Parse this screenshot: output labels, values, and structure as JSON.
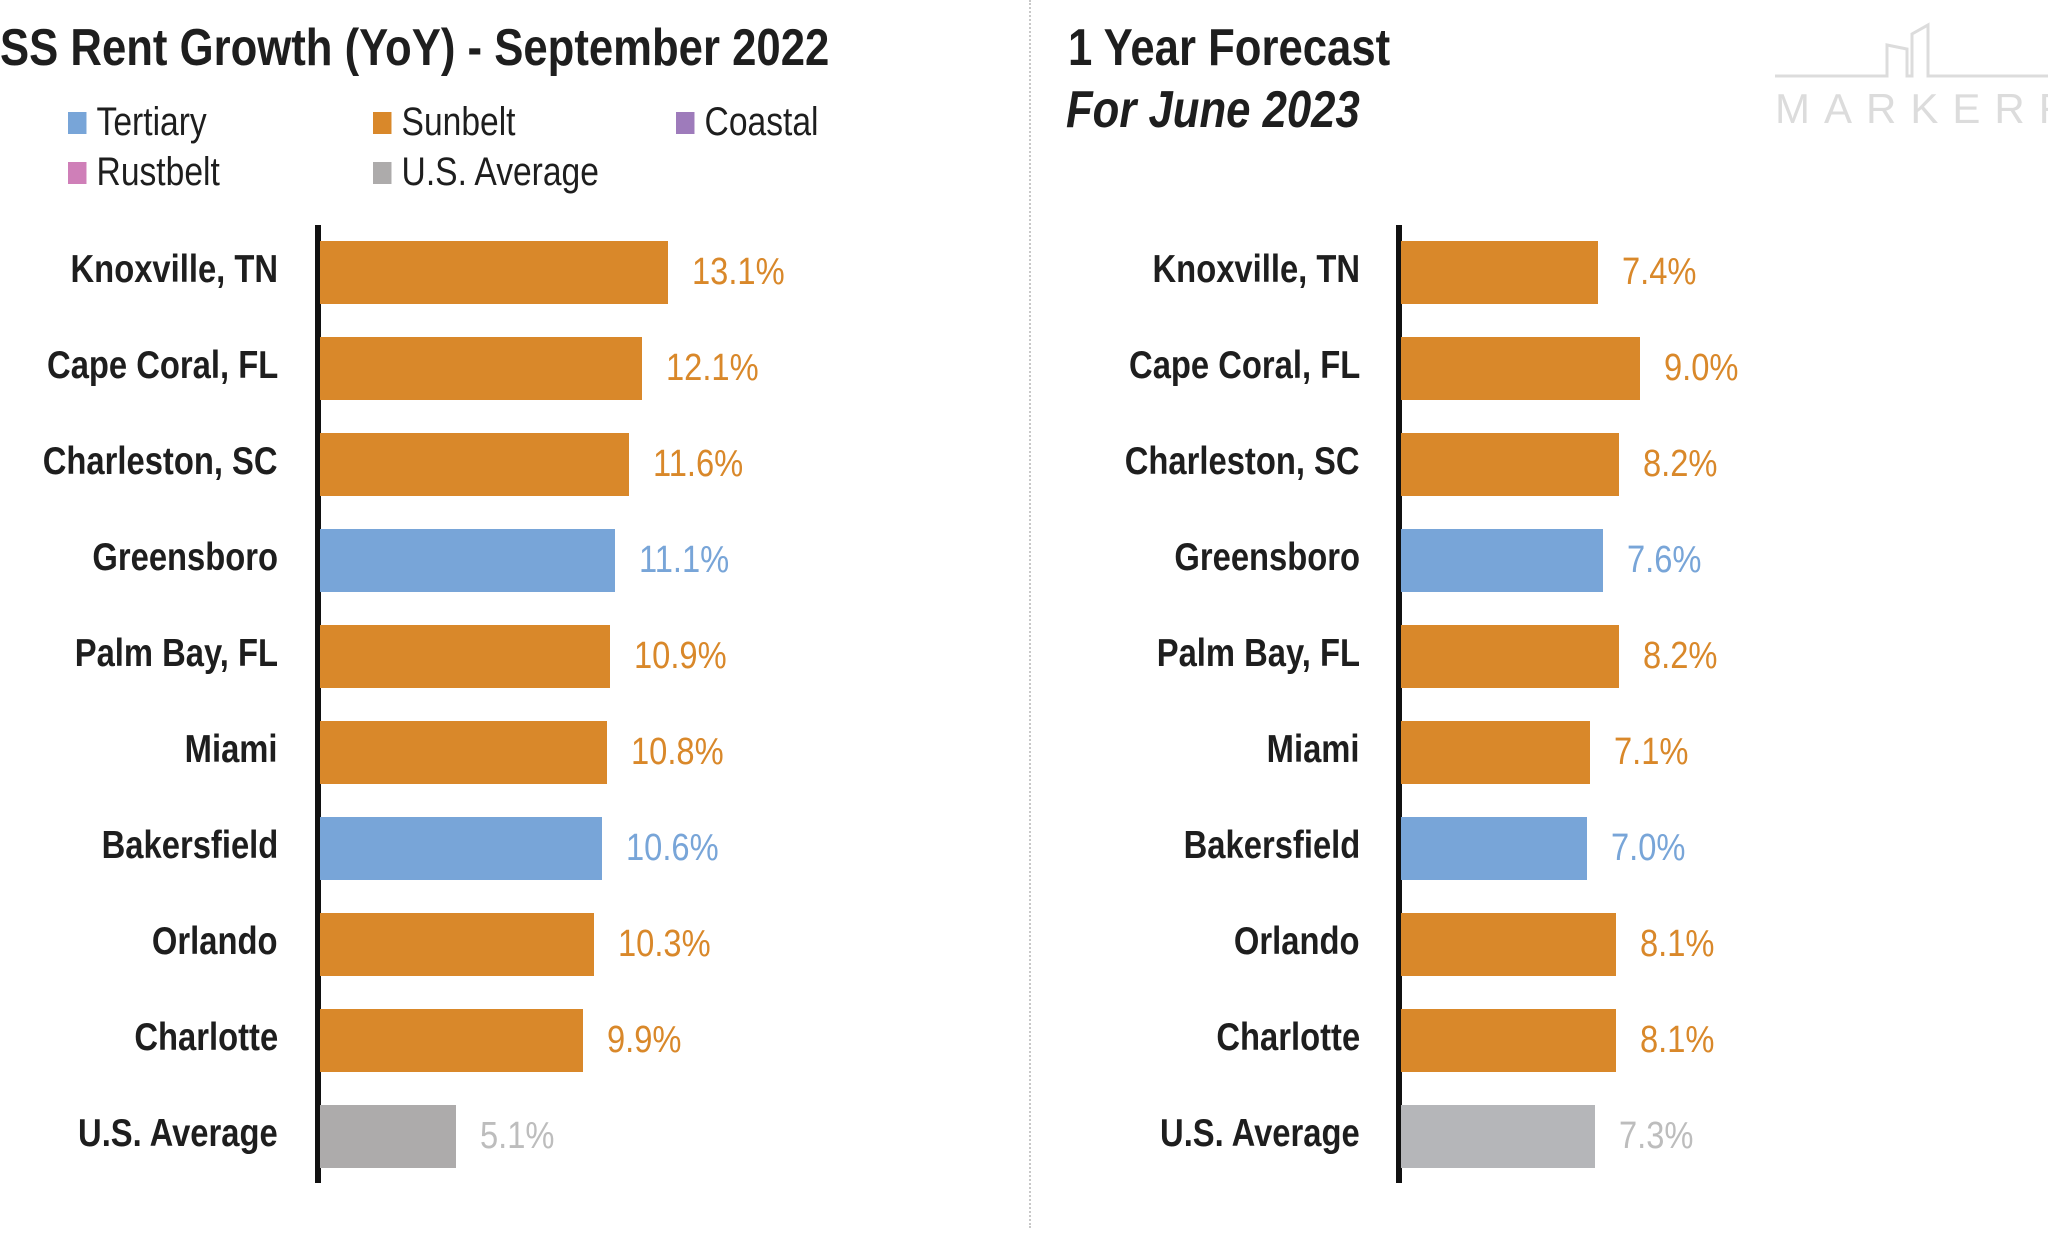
{
  "colors": {
    "Tertiary": "#78A5D8",
    "Sunbelt": "#D9882A",
    "Coastal": "#9E7BBB",
    "Rustbelt": "#CF7FB8",
    "U.S. Average": "#ADABAB"
  },
  "legend": [
    "Tertiary",
    "Sunbelt",
    "Coastal",
    "Rustbelt",
    "U.S. Average"
  ],
  "logo": {
    "text": "MARKERR"
  },
  "chart_data": [
    {
      "type": "bar",
      "orientation": "horizontal",
      "title": "SS Rent Growth (YoY) - September 2022",
      "categories": [
        "Knoxville, TN",
        "Cape Coral, FL",
        "Charleston, SC",
        "Greensboro",
        "Palm Bay, FL",
        "Miami",
        "Bakersfield",
        "Orlando",
        "Charlotte",
        "U.S. Average"
      ],
      "groups": [
        "Sunbelt",
        "Sunbelt",
        "Sunbelt",
        "Tertiary",
        "Sunbelt",
        "Sunbelt",
        "Tertiary",
        "Sunbelt",
        "Sunbelt",
        "U.S. Average"
      ],
      "values": [
        13.1,
        12.1,
        11.6,
        11.1,
        10.9,
        10.8,
        10.6,
        10.3,
        9.9,
        5.1
      ],
      "labels": [
        "13.1%",
        "12.1%",
        "11.6%",
        "11.1%",
        "10.9%",
        "10.8%",
        "10.6%",
        "10.3%",
        "9.9%",
        "5.1%"
      ],
      "legend_position": "top"
    },
    {
      "type": "bar",
      "orientation": "horizontal",
      "title": "1 Year Forecast",
      "subtitle": "For June 2023",
      "categories": [
        "Knoxville, TN",
        "Cape Coral, FL",
        "Charleston, SC",
        "Greensboro",
        "Palm Bay, FL",
        "Miami",
        "Bakersfield",
        "Orlando",
        "Charlotte",
        "U.S. Average"
      ],
      "groups": [
        "Sunbelt",
        "Sunbelt",
        "Sunbelt",
        "Tertiary",
        "Sunbelt",
        "Sunbelt",
        "Tertiary",
        "Sunbelt",
        "Sunbelt",
        "U.S. Average"
      ],
      "values": [
        7.4,
        9.0,
        8.2,
        7.6,
        8.2,
        7.1,
        7.0,
        8.1,
        8.1,
        7.3
      ],
      "labels": [
        "7.4%",
        "9.0%",
        "8.2%",
        "7.6%",
        "8.2%",
        "7.1%",
        "7.0%",
        "8.1%",
        "8.1%",
        "7.3%"
      ]
    }
  ]
}
